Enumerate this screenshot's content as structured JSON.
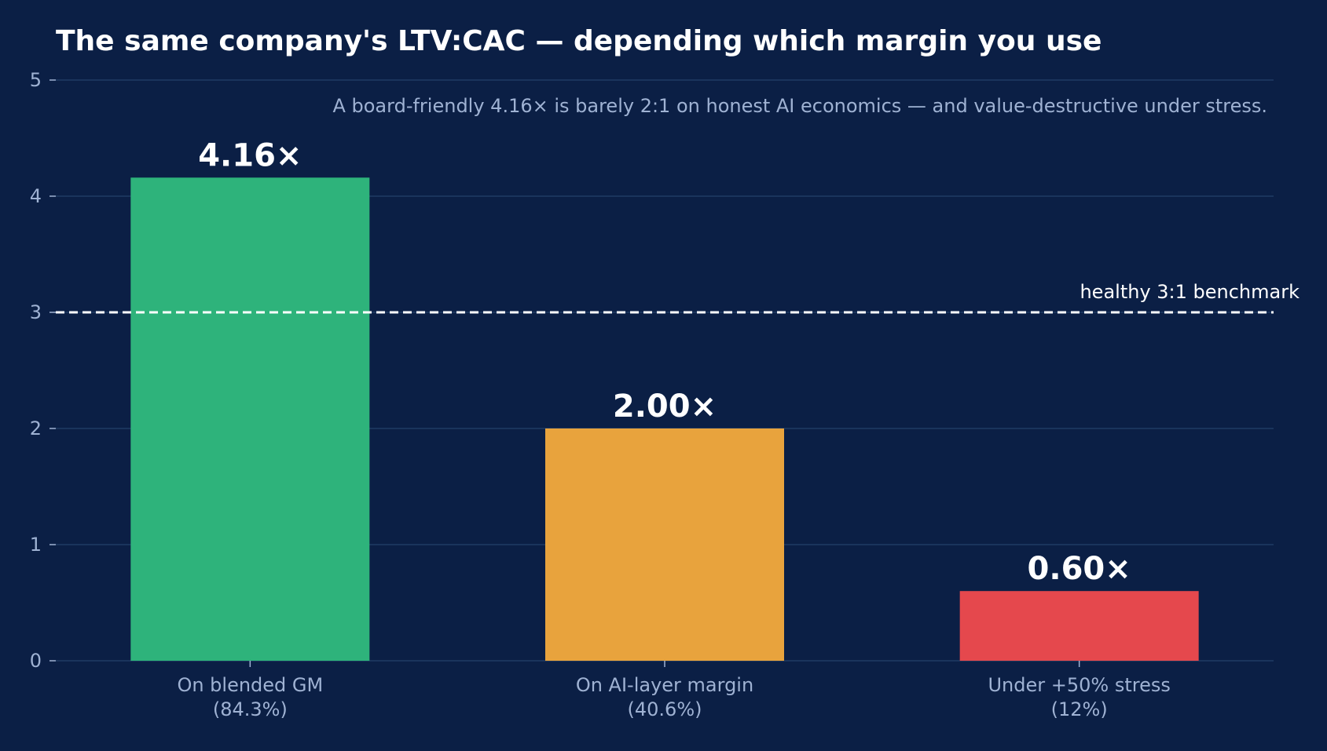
{
  "chart_data": {
    "type": "bar",
    "title": "The same company's LTV:CAC — depending which margin you use",
    "subtitle": "A board-friendly 4.16× is barely 2:1 on honest AI economics — and value-destructive under stress.",
    "xlabel": "",
    "ylabel": "",
    "ylim": [
      0,
      5
    ],
    "yticks": [
      0,
      1,
      2,
      3,
      4,
      5
    ],
    "grid": true,
    "categories": [
      [
        "On blended GM",
        "(84.3%)"
      ],
      [
        "On AI-layer margin",
        "(40.6%)"
      ],
      [
        "Under +50% stress",
        "(12%)"
      ]
    ],
    "values": [
      4.16,
      2.0,
      0.6
    ],
    "value_labels": [
      "4.16×",
      "2.00×",
      "0.60×"
    ],
    "bar_colors": [
      "#2eb37b",
      "#e8a33d",
      "#e5484d"
    ],
    "reference_line": {
      "value": 3,
      "label": "healthy 3:1 benchmark",
      "style": "dashed"
    }
  },
  "colors": {
    "background": "#0b1f45",
    "title": "#ffffff",
    "subtitle": "#9fb2d3",
    "tick_label": "#9fb2d3",
    "grid": "#24406b",
    "value_label": "#ffffff",
    "reference_line": "#ffffff"
  }
}
